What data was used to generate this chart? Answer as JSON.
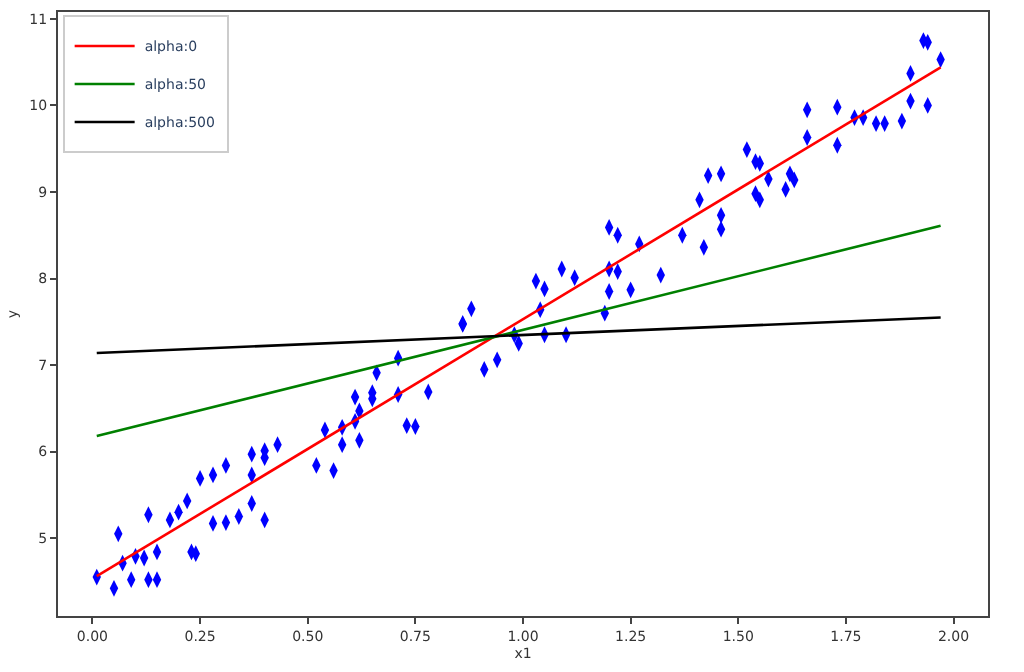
{
  "chart_data": {
    "type": "scatter",
    "xlabel": "x1",
    "ylabel": "y",
    "xlim": [
      -0.08,
      2.08
    ],
    "ylim": [
      4.1,
      11.08
    ],
    "xticks": [
      {
        "value": 0,
        "label": "0.00"
      },
      {
        "value": 0.25,
        "label": "0.25"
      },
      {
        "value": 0.5,
        "label": "0.50"
      },
      {
        "value": 0.75,
        "label": "0.75"
      },
      {
        "value": 1,
        "label": "1.00"
      },
      {
        "value": 1.25,
        "label": "1.25"
      },
      {
        "value": 1.5,
        "label": "1.50"
      },
      {
        "value": 1.75,
        "label": "1.75"
      },
      {
        "value": 2,
        "label": "2.00"
      }
    ],
    "yticks": [
      5,
      6,
      7,
      8,
      9,
      10,
      11
    ],
    "grid": false,
    "legend": "top left",
    "series": [
      {
        "color": "#0000ff",
        "marker": "diamond",
        "x": [
          0.01,
          0.05,
          0.06,
          0.07,
          0.09,
          0.1,
          0.12,
          0.13,
          0.13,
          0.15,
          0.15,
          0.18,
          0.2,
          0.22,
          0.23,
          0.24,
          0.25,
          0.28,
          0.28,
          0.31,
          0.31,
          0.34,
          0.37,
          0.37,
          0.37,
          0.4,
          0.4,
          0.4,
          0.43,
          0.52,
          0.54,
          0.56,
          0.58,
          0.58,
          0.61,
          0.61,
          0.62,
          0.62,
          0.65,
          0.65,
          0.66,
          0.71,
          0.71,
          0.73,
          0.75,
          0.78,
          0.86,
          0.86,
          0.88,
          0.91,
          0.94,
          0.98,
          0.99,
          1.04,
          1.03,
          1.05,
          1.05,
          1.09,
          1.1,
          1.12,
          1.19,
          1.2,
          1.2,
          1.2,
          1.22,
          1.22,
          1.25,
          1.27,
          1.32,
          1.37,
          1.42,
          1.41,
          1.43,
          1.46,
          1.46,
          1.46,
          1.52,
          1.54,
          1.55,
          1.54,
          1.55,
          1.57,
          1.61,
          1.62,
          1.63,
          1.66,
          1.66,
          1.73,
          1.73,
          1.77,
          1.79,
          1.82,
          1.84,
          1.88,
          1.9,
          1.9,
          1.94,
          1.93,
          1.94,
          1.97
        ],
        "values": [
          4.55,
          4.42,
          5.05,
          4.71,
          4.52,
          4.79,
          4.77,
          5.27,
          4.52,
          4.52,
          4.84,
          5.21,
          5.3,
          5.43,
          4.84,
          4.82,
          5.69,
          5.73,
          5.17,
          5.84,
          5.18,
          5.25,
          5.73,
          5.97,
          5.4,
          5.93,
          6.01,
          5.21,
          6.08,
          5.84,
          6.25,
          5.78,
          6.08,
          6.28,
          6.63,
          6.35,
          6.47,
          6.13,
          6.61,
          6.68,
          6.91,
          6.66,
          7.08,
          6.3,
          6.29,
          6.69,
          7.48,
          7.47,
          7.65,
          6.95,
          7.06,
          7.35,
          7.25,
          7.64,
          7.97,
          7.88,
          7.35,
          8.11,
          7.35,
          8.01,
          7.6,
          8.59,
          8.11,
          7.85,
          8.08,
          8.5,
          7.87,
          8.4,
          8.04,
          8.5,
          8.36,
          8.91,
          9.19,
          8.57,
          8.73,
          9.21,
          9.49,
          9.35,
          9.33,
          8.98,
          8.91,
          9.15,
          9.03,
          9.21,
          9.14,
          9.63,
          9.95,
          9.54,
          9.98,
          9.86,
          9.86,
          9.79,
          9.79,
          9.82,
          10.05,
          10.37,
          10.0,
          10.75,
          10.73,
          10.53
        ]
      },
      {
        "type": "line",
        "name": "alpha:0",
        "color": "#ff0000",
        "x": [
          0.01,
          1.97
        ],
        "values": [
          4.56,
          10.44
        ]
      },
      {
        "type": "line",
        "name": "alpha:50",
        "color": "#008000",
        "x": [
          0.01,
          1.97
        ],
        "values": [
          6.18,
          8.61
        ]
      },
      {
        "type": "line",
        "name": "alpha:500",
        "color": "#000000",
        "x": [
          0.01,
          1.97
        ],
        "values": [
          7.14,
          7.55
        ]
      }
    ]
  }
}
